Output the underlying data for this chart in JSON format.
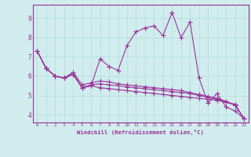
{
  "xlabel": "Windchill (Refroidissement éolien,°C)",
  "bg_color": "#d0ecec",
  "line_color": "#993399",
  "grid_color": "#b8dede",
  "xlim": [
    -0.5,
    23.5
  ],
  "ylim": [
    3.6,
    9.7
  ],
  "xticks": [
    0,
    1,
    2,
    3,
    4,
    5,
    6,
    7,
    8,
    9,
    10,
    11,
    12,
    13,
    14,
    15,
    16,
    17,
    18,
    19,
    20,
    21,
    22,
    23
  ],
  "yticks": [
    4,
    5,
    6,
    7,
    8,
    9
  ],
  "series1_y": [
    7.3,
    6.4,
    6.0,
    5.9,
    6.1,
    5.4,
    5.5,
    6.9,
    6.5,
    6.3,
    7.6,
    8.3,
    8.5,
    8.6,
    8.1,
    9.3,
    8.0,
    8.8,
    5.9,
    4.6,
    5.1,
    4.4,
    4.2,
    3.8
  ],
  "series2_y": [
    7.3,
    6.4,
    6.0,
    5.9,
    6.1,
    5.4,
    5.5,
    5.4,
    5.35,
    5.3,
    5.25,
    5.2,
    5.15,
    5.1,
    5.05,
    5.0,
    4.95,
    4.9,
    4.85,
    4.8,
    4.75,
    4.65,
    4.55,
    3.8
  ],
  "series3_y": [
    7.3,
    6.4,
    6.0,
    5.9,
    6.1,
    5.4,
    5.55,
    5.6,
    5.55,
    5.5,
    5.45,
    5.4,
    5.35,
    5.3,
    5.25,
    5.2,
    5.15,
    5.1,
    5.0,
    4.9,
    4.8,
    4.65,
    4.5,
    3.8
  ],
  "series4_y": [
    7.3,
    6.4,
    6.0,
    5.9,
    6.2,
    5.55,
    5.65,
    5.75,
    5.7,
    5.6,
    5.55,
    5.5,
    5.45,
    5.4,
    5.35,
    5.3,
    5.25,
    5.15,
    5.05,
    4.95,
    4.85,
    4.7,
    4.5,
    3.8
  ]
}
